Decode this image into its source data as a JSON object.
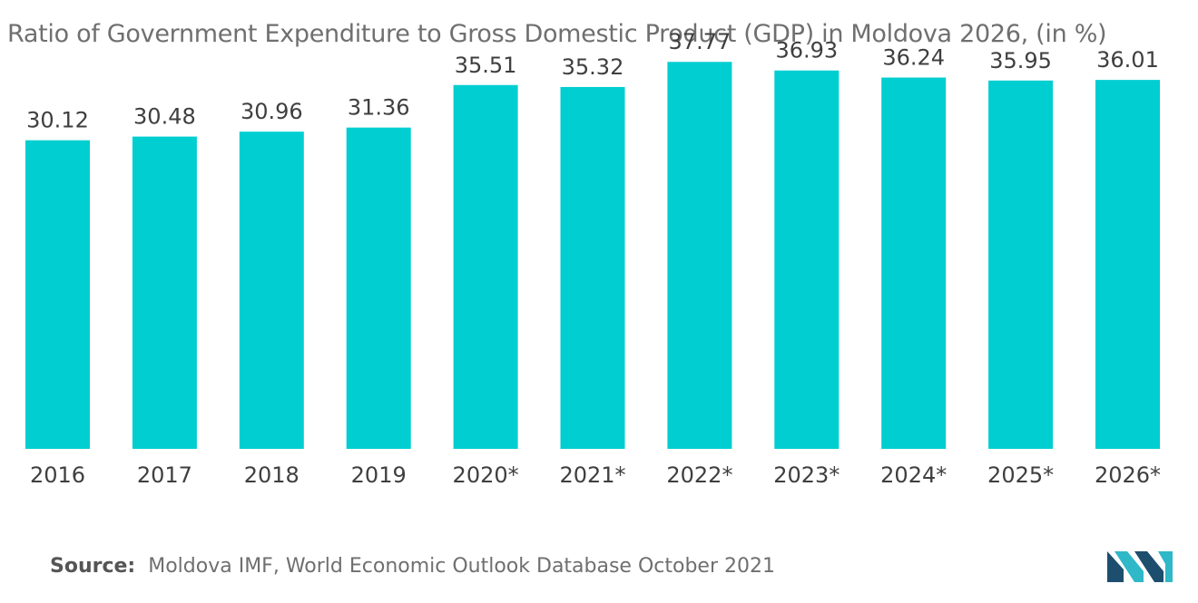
{
  "title": "Ratio of Government Expenditure to Gross Domestic Product (GDP) in Moldova 2026, (in %)",
  "source_label": "Source:",
  "source_text": "Moldova IMF, World Economic Outlook Database October 2021",
  "colors": {
    "bar": "#00ced1",
    "text": "#3f3f3f",
    "title": "#6f6f6f",
    "logo_dark": "#1d4e6e",
    "logo_light": "#2fb8c8"
  },
  "logo_icon": "mordor-intelligence-logo",
  "chart_data": {
    "type": "bar",
    "title": "Ratio of Government Expenditure to Gross Domestic Product (GDP) in Moldova 2026, (in %)",
    "xlabel": "",
    "ylabel": "",
    "categories": [
      "2016",
      "2017",
      "2018",
      "2019",
      "2020*",
      "2021*",
      "2022*",
      "2023*",
      "2024*",
      "2025*",
      "2026*"
    ],
    "values": [
      30.12,
      30.48,
      30.96,
      31.36,
      35.51,
      35.32,
      37.77,
      36.93,
      36.24,
      35.95,
      36.01
    ],
    "value_labels": [
      "30.12",
      "30.48",
      "30.96",
      "31.36",
      "35.51",
      "35.32",
      "37.77",
      "36.93",
      "36.24",
      "35.95",
      "36.01"
    ],
    "ylim": [
      0,
      38.5
    ],
    "grid": false,
    "legend": "none",
    "data_labels": true
  }
}
